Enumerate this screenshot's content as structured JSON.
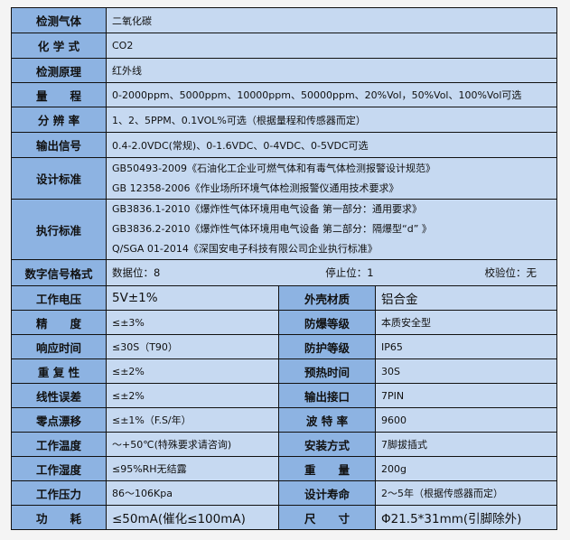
{
  "colors": {
    "label_bg": "#8db3e2",
    "value_bg": "#c6d9f1",
    "border": "#111111",
    "page_bg": "#f4f4f4"
  },
  "rows": [
    {
      "label": "检测气体",
      "value": "二氧化碳"
    },
    {
      "label": "化 学 式",
      "value": "CO2"
    },
    {
      "label": "检测原理",
      "value": "红外线"
    },
    {
      "label": "量　　程",
      "value": "0-2000ppm、5000ppm、10000ppm、50000ppm、20%Vol，50%Vol、100%Vol可选"
    },
    {
      "label": "分 辨 率",
      "value": "1、2、5PPM、0.1VOL%可选（根据量程和传感器而定）"
    },
    {
      "label": "输出信号",
      "value": "0.4-2.0VDC(常规)、0-1.6VDC、0-4VDC、0-5VDC可选"
    }
  ],
  "design_standard": {
    "label": "设计标准",
    "lines": [
      "GB50493-2009《石油化工企业可燃气体和有毒气体检测报警设计规范》",
      "GB 12358-2006《作业场所环境气体检测报警仪通用技术要求》"
    ]
  },
  "exec_standard": {
    "label": "执行标准",
    "lines": [
      "GB3836.1-2010《爆炸性气体环境用电气设备 第一部分：通用要求》",
      "GB3836.2-2010《爆炸性气体环境用电气设备 第二部分：隔爆型“d” 》",
      "Q/SGA 01-2014《深国安电子科技有限公司企业执行标准》"
    ]
  },
  "digital_signal": {
    "label": "数字信号格式",
    "data_bits": "数据位：8",
    "stop_bits": "停止位：1",
    "parity": "校验位：无"
  },
  "pairs": [
    {
      "l1": "工作电压",
      "v1": "5V±1%",
      "l2": "外壳材质",
      "v2": "铝合金"
    },
    {
      "l1": "精　　度",
      "v1": "≤±3%",
      "l2": "防爆等级",
      "v2": "本质安全型"
    },
    {
      "l1": "响应时间",
      "v1": "≤30S（T90）",
      "l2": "防护等级",
      "v2": "IP65"
    },
    {
      "l1": "重 复 性",
      "v1": "≤±2%",
      "l2": "预热时间",
      "v2": "30S"
    },
    {
      "l1": "线性误差",
      "v1": "≤±2%",
      "l2": "输出接口",
      "v2": "7PIN"
    },
    {
      "l1": "零点漂移",
      "v1": "≤±1%（F.S/年）",
      "l2": "波 特 率",
      "v2": "9600"
    },
    {
      "l1": "工作温度",
      "v1": "～+50℃(特殊要求请咨询)",
      "l2": "安装方式",
      "v2": "7脚拔插式"
    },
    {
      "l1": "工作湿度",
      "v1": "≤95%RH无结露",
      "l2": "重　　量",
      "v2": "200g"
    },
    {
      "l1": "工作压力",
      "v1": "86～106Kpa",
      "l2": "设计寿命",
      "v2": "2～5年（根据传感器而定）"
    },
    {
      "l1": "功　　耗",
      "v1": "≤50mA(催化≤100mA)",
      "l2": "尺　　寸",
      "v2": "Φ21.5*31mm(引脚除外)"
    }
  ]
}
